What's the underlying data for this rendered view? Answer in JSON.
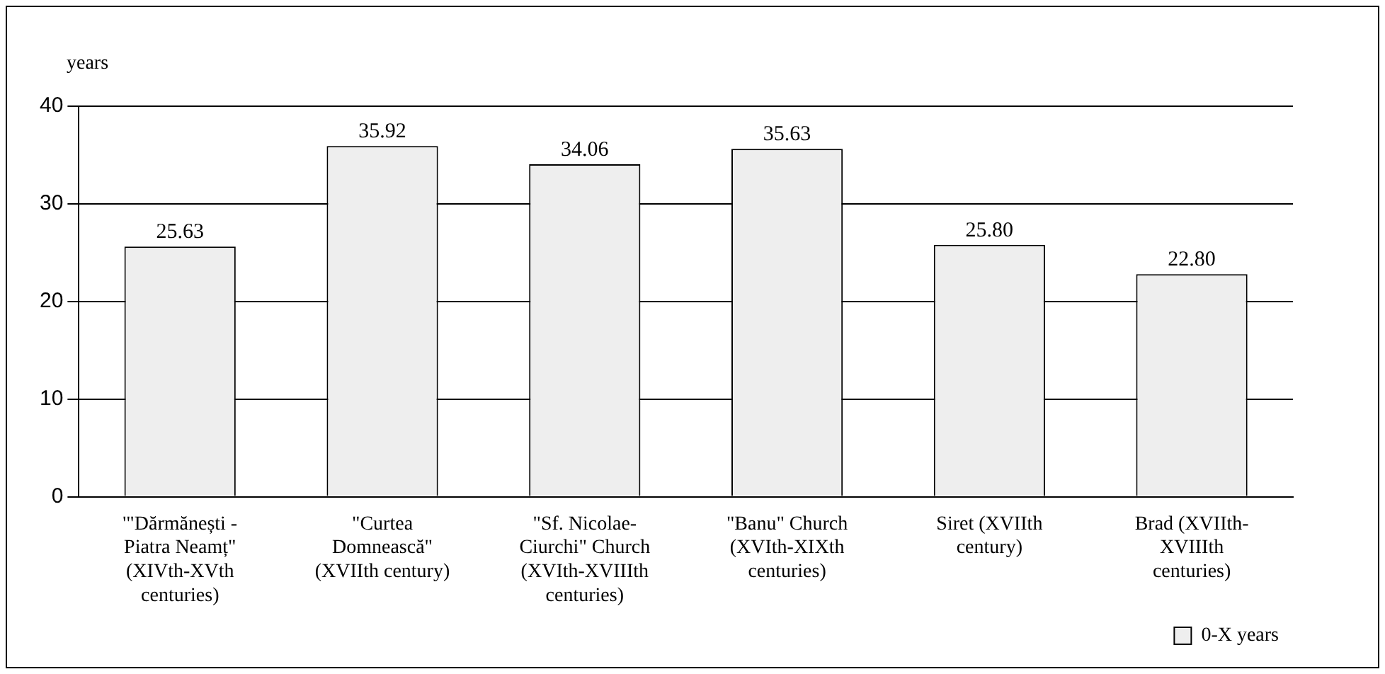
{
  "chart_data": {
    "type": "bar",
    "ylabel": "years",
    "categories": [
      "'\"Dărmănești - Piatra Neamț\" (XIVth-XVth centuries)",
      "\"Curtea Domnească\" (XVIIth century)",
      "\"Sf. Nicolae- Ciurchi\" Church (XVIth-XVIIIth centuries)",
      "\"Banu\" Church (XVIth-XIXth centuries)",
      "Siret (XVIIth century)",
      "Brad (XVIIth- XVIIIth centuries)"
    ],
    "series": [
      {
        "name": "0-X years",
        "color": "#eeeeee",
        "values": [
          25.63,
          35.92,
          34.06,
          35.63,
          25.8,
          22.8
        ],
        "value_labels": [
          "25.63",
          "35.92",
          "34.06",
          "35.63",
          "25.80",
          "22.80"
        ]
      }
    ],
    "ylim": [
      0,
      40
    ],
    "yticks": [
      0,
      10,
      20,
      30,
      40
    ],
    "grid": "y",
    "legend": "bottom right"
  }
}
